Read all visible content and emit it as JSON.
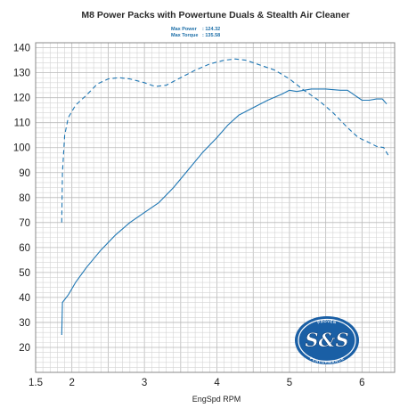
{
  "chart_data": {
    "type": "line",
    "title": "M8 Power Packs with Powertune Duals & Stealth Air Cleaner",
    "stats": [
      {
        "label": "Max Power",
        "value": ": 124.32"
      },
      {
        "label": "Max Torque",
        "value": ": 135.58"
      }
    ],
    "xlabel": "EngSpd RPM",
    "ylabel": "",
    "xlim": [
      1.5,
      6.45
    ],
    "ylim": [
      10,
      142
    ],
    "xticks": [
      "1.5",
      "2",
      "3",
      "4",
      "5",
      "6"
    ],
    "yticks": [
      "20",
      "30",
      "40",
      "50",
      "60",
      "70",
      "80",
      "90",
      "100",
      "110",
      "120",
      "130",
      "140"
    ],
    "grid": true,
    "colors": {
      "line": "#1f77b4",
      "logo_blue": "#1a5fa5"
    },
    "series": [
      {
        "name": "Max Power",
        "style": "solid",
        "x": [
          1.86,
          1.87,
          1.95,
          2.05,
          2.2,
          2.4,
          2.6,
          2.8,
          3.0,
          3.2,
          3.4,
          3.6,
          3.8,
          4.0,
          4.15,
          4.3,
          4.5,
          4.7,
          4.9,
          5.0,
          5.1,
          5.2,
          5.3,
          5.5,
          5.7,
          5.8,
          5.9,
          6.0,
          6.1,
          6.2,
          6.28,
          6.34
        ],
        "y": [
          25,
          38,
          41,
          46,
          52,
          59,
          65,
          70,
          74,
          78,
          84,
          91,
          98,
          104,
          109,
          113,
          116,
          119,
          121.5,
          123,
          122.5,
          123,
          123.5,
          123.5,
          123,
          123,
          121,
          119,
          119,
          119.5,
          119.5,
          117.5
        ]
      },
      {
        "name": "Max Torque",
        "style": "dashed",
        "x": [
          1.86,
          1.87,
          1.9,
          1.95,
          2.05,
          2.2,
          2.35,
          2.5,
          2.65,
          2.8,
          3.0,
          3.15,
          3.3,
          3.5,
          3.7,
          3.9,
          4.1,
          4.25,
          4.4,
          4.6,
          4.8,
          5.0,
          5.2,
          5.4,
          5.6,
          5.8,
          5.95,
          6.1,
          6.2,
          6.3,
          6.36
        ],
        "y": [
          70,
          90,
          105,
          112,
          117,
          121,
          125.5,
          127.5,
          128,
          127.5,
          126,
          124.5,
          125,
          128,
          131,
          133.5,
          135,
          135.5,
          135,
          133,
          131,
          127.5,
          123,
          119,
          114,
          108,
          104,
          102,
          100.5,
          100,
          97
        ]
      }
    ]
  },
  "logo": {
    "text": "S&S",
    "arc_top": "PROVEN",
    "arc_bottom": "PERFORMANCE"
  }
}
